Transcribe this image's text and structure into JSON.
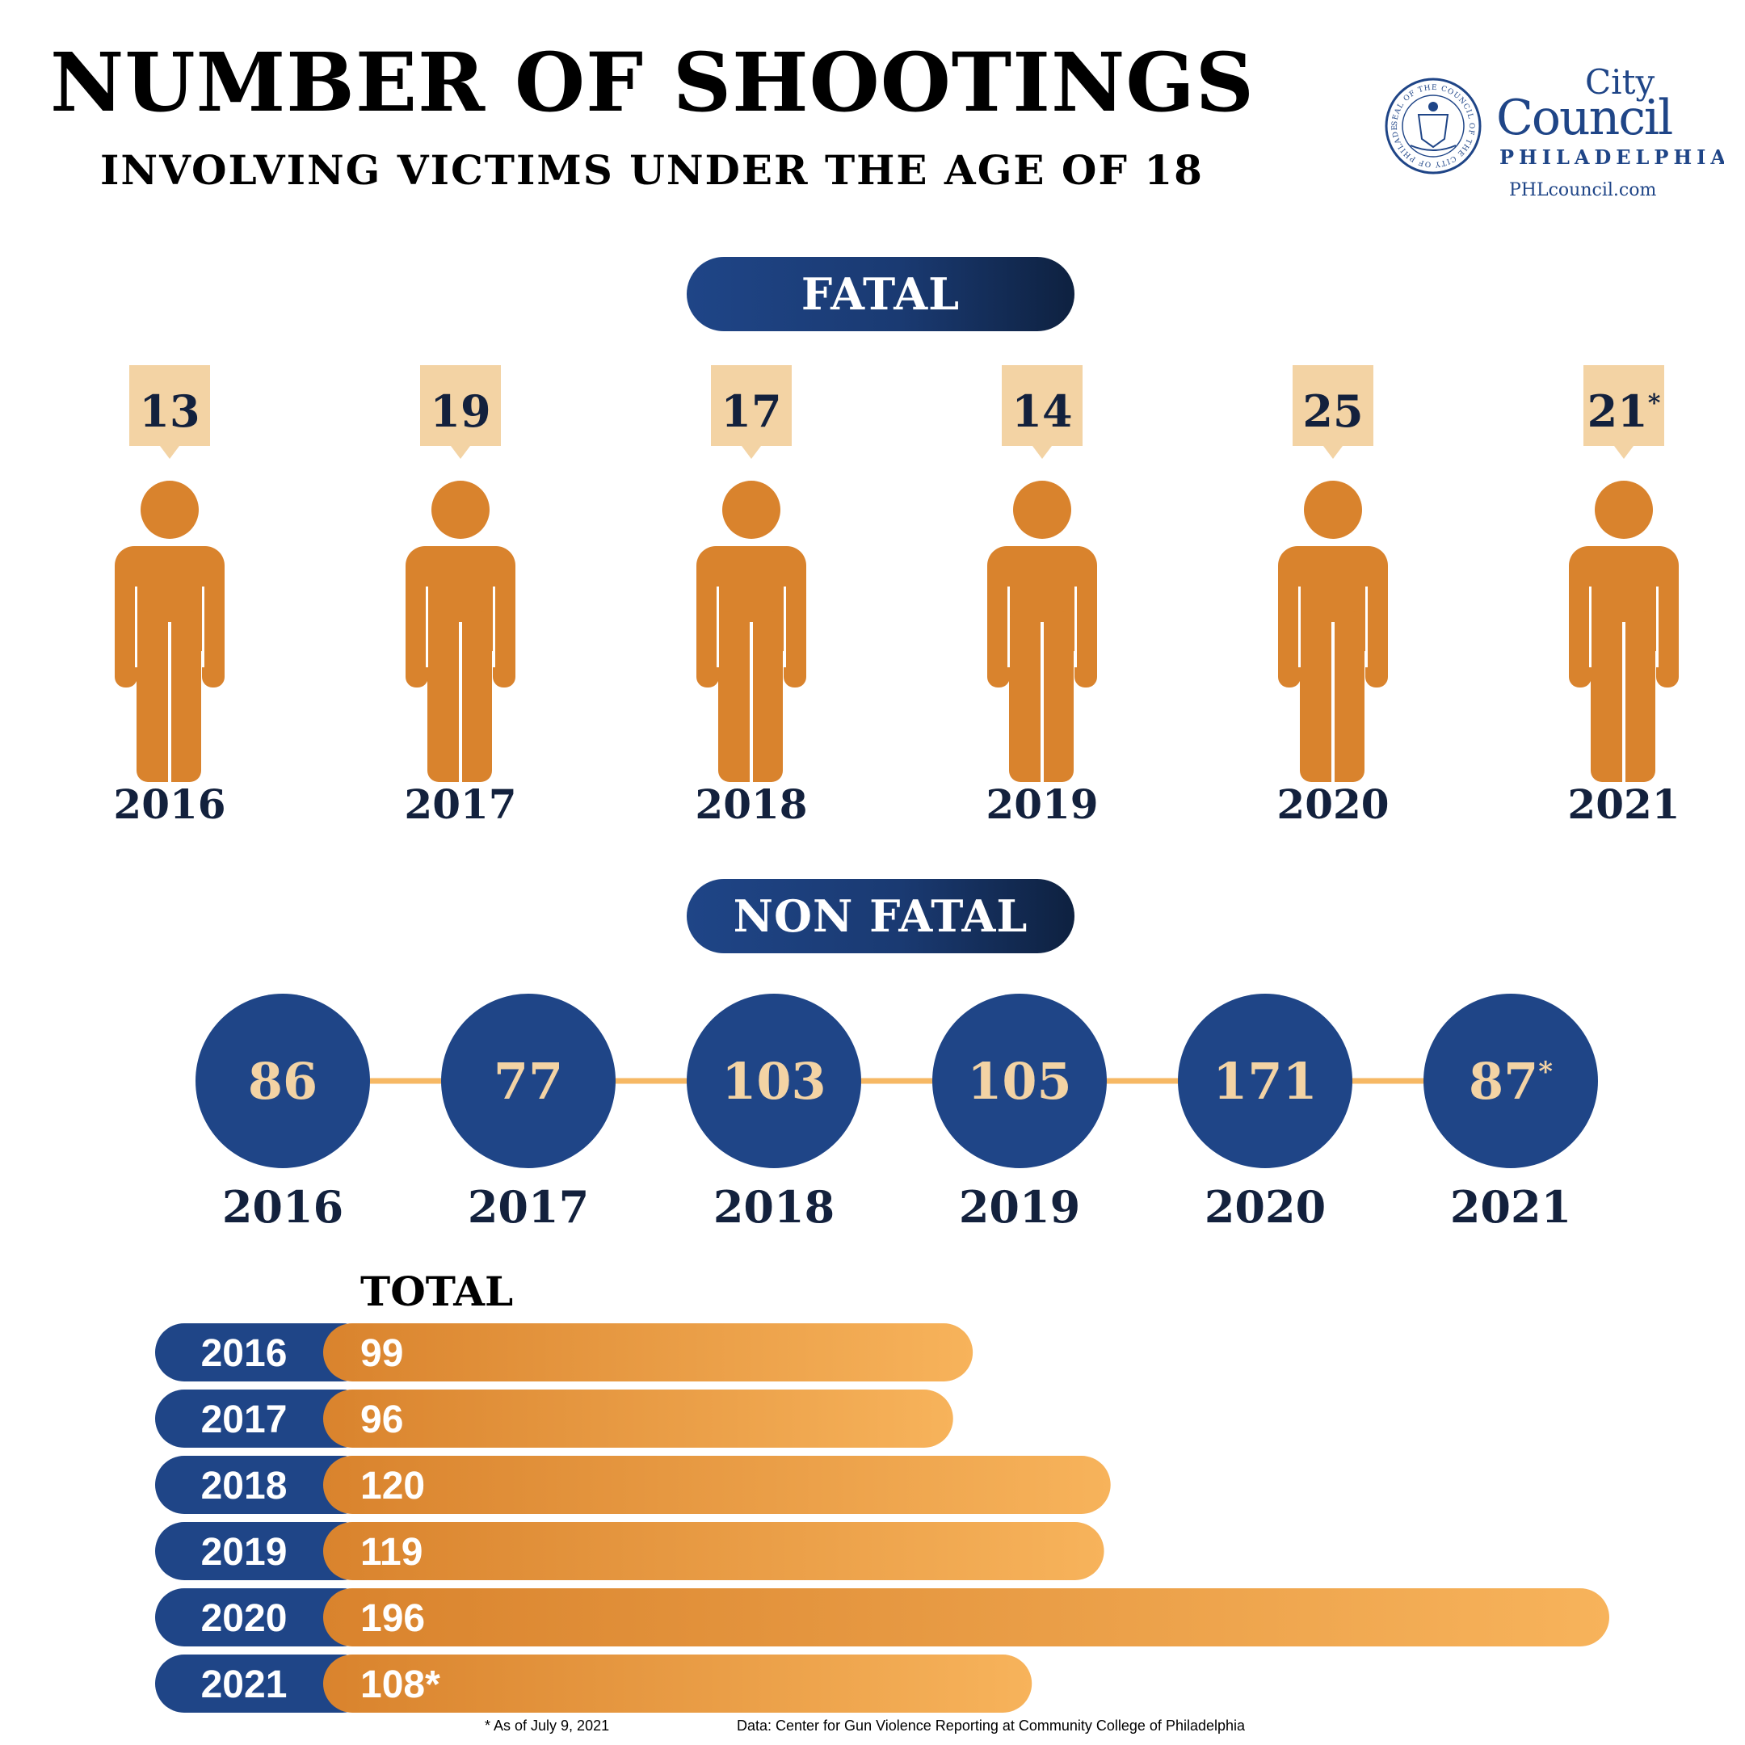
{
  "header": {
    "title": "NUMBER OF SHOOTINGS",
    "subtitle": "INVOLVING VICTIMS UNDER THE AGE OF 18"
  },
  "logo": {
    "city": "City",
    "council": "Council",
    "philadelphia": "PHILADELPHIA",
    "website": "PHLcouncil.com",
    "seal_text": "SEAL OF THE COUNCIL OF THE CITY OF PHILADELPHIA"
  },
  "sections": {
    "fatal_label": "FATAL",
    "nonfatal_label": "NON FATAL",
    "total_label": "TOTAL"
  },
  "chart_data": [
    {
      "type": "pictogram",
      "section": "FATAL",
      "categories": [
        "2016",
        "2017",
        "2018",
        "2019",
        "2020",
        "2021"
      ],
      "values": [
        13,
        19,
        17,
        14,
        25,
        21
      ],
      "value_labels": [
        "13",
        "19",
        "17",
        "14",
        "25",
        "21*"
      ]
    },
    {
      "type": "timeline",
      "section": "NON FATAL",
      "categories": [
        "2016",
        "2017",
        "2018",
        "2019",
        "2020",
        "2021"
      ],
      "values": [
        86,
        77,
        103,
        105,
        171,
        87
      ],
      "value_labels": [
        "86",
        "77",
        "103",
        "105",
        "171",
        "87*"
      ]
    },
    {
      "type": "bar",
      "orientation": "horizontal",
      "section": "TOTAL",
      "categories": [
        "2016",
        "2017",
        "2018",
        "2019",
        "2020",
        "2021"
      ],
      "values": [
        99,
        96,
        120,
        119,
        196,
        108
      ],
      "value_labels": [
        "99",
        "96",
        "120",
        "119",
        "196",
        "108*"
      ]
    }
  ],
  "colors": {
    "navy": "#1f4587",
    "dark_navy": "#13213d",
    "orange": "#d9832d",
    "light_orange": "#f7b35b",
    "peach": "#f3d3a4",
    "line": "#f6b864"
  },
  "footnotes": {
    "asterisk": "* As of July 9, 2021",
    "source": "Data: Center for Gun Violence Reporting at Community College of Philadelphia"
  }
}
